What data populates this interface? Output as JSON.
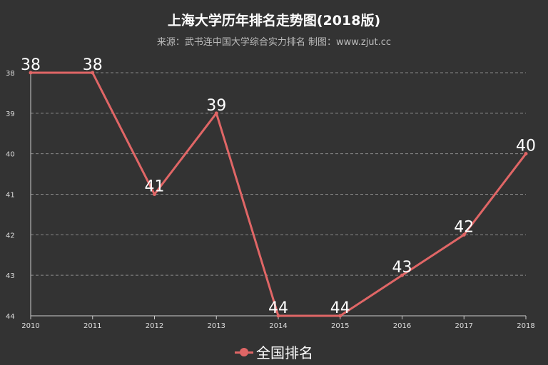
{
  "chart_data": {
    "type": "line",
    "title": "上海大学历年排名走势图(2018版)",
    "subtitle": "来源：武书连中国大学综合实力排名 制图：www.zjut.cc",
    "x": [
      "2010",
      "2011",
      "2012",
      "2013",
      "2014",
      "2015",
      "2016",
      "2017",
      "2018"
    ],
    "series": [
      {
        "name": "全国排名",
        "values": [
          38,
          38,
          41,
          39,
          44,
          44,
          43,
          42,
          40
        ],
        "color": "#e06666"
      }
    ],
    "y_ticks": [
      "38",
      "39",
      "40",
      "41",
      "42",
      "43",
      "44"
    ],
    "ylim": [
      38,
      44
    ],
    "y_inverted": true,
    "grid": true,
    "legend_position": "bottom-center",
    "background": "#333333"
  }
}
